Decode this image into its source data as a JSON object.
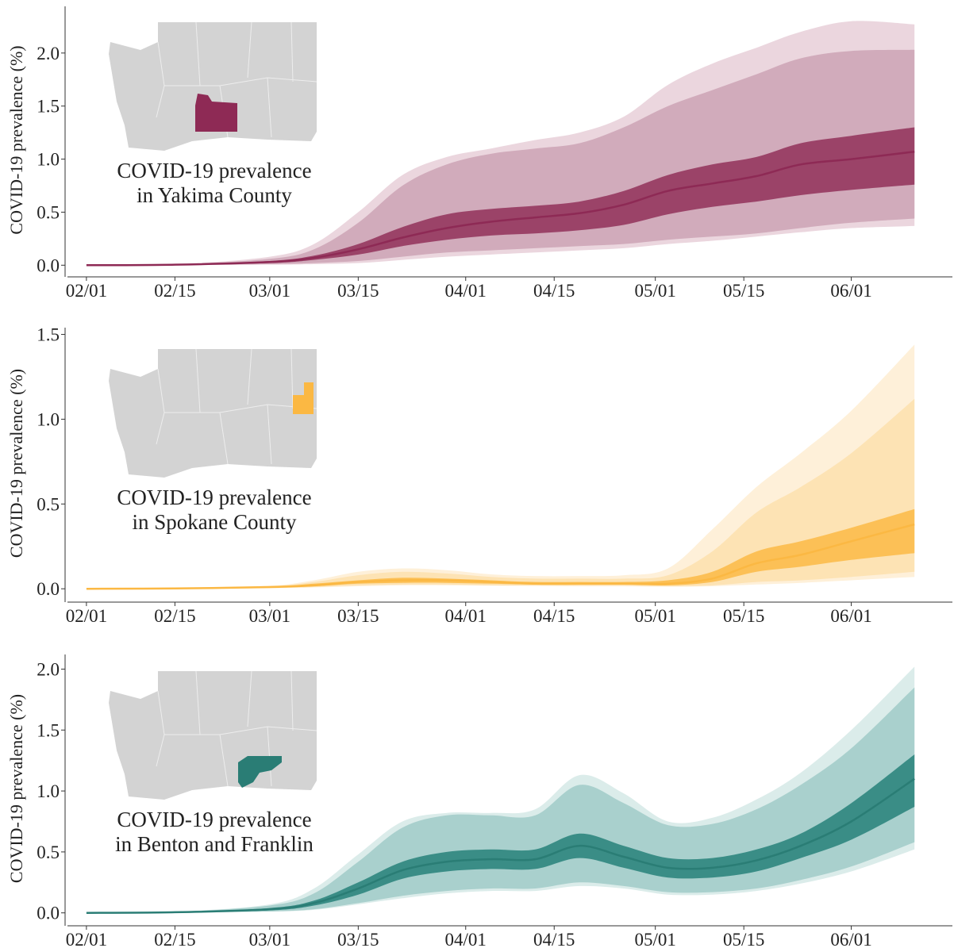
{
  "chart_data": [
    {
      "type": "line",
      "annotation": [
        "COVID-19 prevalence",
        "in Yakima County"
      ],
      "ylabel": "COVID-19 prevalence (%)",
      "x": [
        "02/01",
        "02/15",
        "03/01",
        "03/08",
        "03/15",
        "03/22",
        "03/29",
        "04/05",
        "04/12",
        "04/19",
        "04/26",
        "05/03",
        "05/10",
        "05/17",
        "05/24",
        "06/01",
        "06/11"
      ],
      "xlim": [
        "01/29",
        "06/17"
      ],
      "xticks": [
        "02/01",
        "02/15",
        "03/01",
        "03/15",
        "04/01",
        "04/15",
        "05/01",
        "05/15",
        "06/01"
      ],
      "ylim": [
        -0.08,
        2.44
      ],
      "yticks": [
        {
          "value": 0,
          "label": "0.0"
        },
        0.5,
        {
          "value": 1,
          "label": "1.0"
        },
        1.5,
        {
          "value": 2,
          "label": "2.0"
        }
      ],
      "median": {
        "color": "#8e2a55",
        "values": [
          0,
          0.005,
          0.03,
          0.07,
          0.15,
          0.26,
          0.35,
          0.41,
          0.45,
          0.49,
          0.57,
          0.7,
          0.77,
          0.84,
          0.95,
          1.0,
          1.07
        ]
      },
      "bands": [
        {
          "color": "#ebd6de",
          "upper": [
            0,
            0.008,
            0.08,
            0.2,
            0.5,
            0.85,
            1.02,
            1.1,
            1.18,
            1.25,
            1.4,
            1.7,
            1.9,
            2.05,
            2.2,
            2.3,
            2.27
          ],
          "lower": [
            0,
            0.002,
            0.005,
            0.01,
            0.02,
            0.05,
            0.08,
            0.1,
            0.12,
            0.14,
            0.16,
            0.2,
            0.23,
            0.27,
            0.31,
            0.35,
            0.37
          ]
        },
        {
          "color": "#d1abbb",
          "upper": [
            0,
            0.007,
            0.06,
            0.15,
            0.4,
            0.75,
            0.95,
            1.05,
            1.1,
            1.15,
            1.3,
            1.5,
            1.65,
            1.8,
            1.95,
            2.02,
            2.03
          ],
          "lower": [
            0,
            0.003,
            0.01,
            0.02,
            0.04,
            0.08,
            0.12,
            0.14,
            0.16,
            0.18,
            0.2,
            0.24,
            0.27,
            0.3,
            0.35,
            0.4,
            0.44
          ]
        },
        {
          "color": "#9b4368",
          "upper": [
            0,
            0.006,
            0.04,
            0.09,
            0.2,
            0.36,
            0.48,
            0.53,
            0.56,
            0.6,
            0.7,
            0.85,
            0.95,
            1.02,
            1.15,
            1.22,
            1.3
          ],
          "lower": [
            0,
            0.004,
            0.02,
            0.05,
            0.1,
            0.18,
            0.24,
            0.28,
            0.3,
            0.33,
            0.38,
            0.48,
            0.55,
            0.6,
            0.66,
            0.71,
            0.76
          ]
        }
      ]
    },
    {
      "type": "line",
      "annotation": [
        "COVID-19 prevalence",
        "in Spokane County"
      ],
      "ylabel": "COVID-19 prevalence (%)",
      "x": [
        "02/01",
        "02/15",
        "03/01",
        "03/08",
        "03/15",
        "03/22",
        "03/29",
        "04/05",
        "04/12",
        "04/19",
        "04/26",
        "05/03",
        "05/10",
        "05/17",
        "05/24",
        "06/01",
        "06/11"
      ],
      "xlim": [
        "01/29",
        "06/17"
      ],
      "xticks": [
        "02/01",
        "02/15",
        "03/01",
        "03/15",
        "04/01",
        "04/15",
        "05/01",
        "05/15",
        "06/01"
      ],
      "ylim": [
        -0.06,
        1.54
      ],
      "yticks": [
        {
          "value": 0,
          "label": "0.0"
        },
        0.5,
        {
          "value": 1,
          "label": "1.0"
        },
        1.5
      ],
      "median": {
        "color": "#fbb843",
        "values": [
          0,
          0.002,
          0.01,
          0.02,
          0.04,
          0.05,
          0.05,
          0.04,
          0.03,
          0.03,
          0.03,
          0.03,
          0.06,
          0.15,
          0.2,
          0.28,
          0.38
        ]
      },
      "bands": [
        {
          "color": "#fef0d9",
          "upper": [
            0,
            0.005,
            0.018,
            0.05,
            0.1,
            0.12,
            0.11,
            0.085,
            0.075,
            0.075,
            0.08,
            0.12,
            0.35,
            0.6,
            0.8,
            1.05,
            1.44
          ],
          "lower": [
            0,
            0,
            0.003,
            0.008,
            0.015,
            0.02,
            0.02,
            0.018,
            0.016,
            0.015,
            0.015,
            0.012,
            0.015,
            0.025,
            0.035,
            0.05,
            0.07
          ]
        },
        {
          "color": "#fde3b4",
          "upper": [
            0,
            0.004,
            0.015,
            0.04,
            0.08,
            0.1,
            0.09,
            0.07,
            0.06,
            0.06,
            0.06,
            0.08,
            0.22,
            0.45,
            0.6,
            0.8,
            1.12
          ],
          "lower": [
            0,
            0.001,
            0.005,
            0.01,
            0.02,
            0.025,
            0.025,
            0.02,
            0.02,
            0.018,
            0.018,
            0.015,
            0.02,
            0.04,
            0.05,
            0.07,
            0.1
          ]
        },
        {
          "color": "#fcc056",
          "upper": [
            0,
            0.003,
            0.012,
            0.03,
            0.05,
            0.065,
            0.06,
            0.05,
            0.04,
            0.04,
            0.04,
            0.05,
            0.1,
            0.22,
            0.28,
            0.36,
            0.47
          ],
          "lower": [
            0,
            0.001,
            0.008,
            0.015,
            0.03,
            0.035,
            0.035,
            0.03,
            0.025,
            0.025,
            0.025,
            0.02,
            0.04,
            0.1,
            0.13,
            0.17,
            0.21
          ]
        }
      ]
    },
    {
      "type": "line",
      "annotation": [
        "COVID-19 prevalence",
        "in Benton and Franklin"
      ],
      "ylabel": "COVID-19 prevalence (%)",
      "x": [
        "02/01",
        "02/15",
        "03/01",
        "03/08",
        "03/15",
        "03/22",
        "03/29",
        "04/05",
        "04/12",
        "04/19",
        "04/26",
        "05/03",
        "05/10",
        "05/17",
        "05/24",
        "06/01",
        "06/11"
      ],
      "xlim": [
        "01/29",
        "06/17"
      ],
      "xticks": [
        "02/01",
        "02/15",
        "03/01",
        "03/15",
        "04/01",
        "04/15",
        "05/01",
        "05/15",
        "06/01"
      ],
      "ylim": [
        -0.08,
        2.12
      ],
      "yticks": [
        {
          "value": 0,
          "label": "0.0"
        },
        0.5,
        {
          "value": 1,
          "label": "1.0"
        },
        1.5,
        {
          "value": 2,
          "label": "2.0"
        }
      ],
      "median": {
        "color": "#2a7d75",
        "values": [
          0,
          0.005,
          0.03,
          0.08,
          0.2,
          0.35,
          0.42,
          0.44,
          0.44,
          0.55,
          0.46,
          0.37,
          0.37,
          0.43,
          0.55,
          0.75,
          1.1
        ]
      },
      "bands": [
        {
          "color": "#dbecea",
          "upper": [
            0,
            0.009,
            0.07,
            0.2,
            0.48,
            0.75,
            0.82,
            0.82,
            0.85,
            1.13,
            0.98,
            0.75,
            0.78,
            0.93,
            1.15,
            1.5,
            2.02
          ],
          "lower": [
            0,
            0.002,
            0.01,
            0.025,
            0.07,
            0.12,
            0.16,
            0.18,
            0.18,
            0.22,
            0.2,
            0.15,
            0.15,
            0.18,
            0.24,
            0.34,
            0.52
          ]
        },
        {
          "color": "#a9d0cd",
          "upper": [
            0,
            0.008,
            0.06,
            0.16,
            0.42,
            0.7,
            0.8,
            0.8,
            0.8,
            1.05,
            0.9,
            0.72,
            0.73,
            0.85,
            1.05,
            1.35,
            1.85
          ],
          "lower": [
            0,
            0.003,
            0.012,
            0.03,
            0.08,
            0.14,
            0.18,
            0.2,
            0.2,
            0.25,
            0.22,
            0.17,
            0.17,
            0.2,
            0.27,
            0.38,
            0.58
          ]
        },
        {
          "color": "#3a8d86",
          "upper": [
            0,
            0.006,
            0.04,
            0.1,
            0.25,
            0.42,
            0.5,
            0.52,
            0.52,
            0.65,
            0.55,
            0.45,
            0.45,
            0.52,
            0.65,
            0.9,
            1.3
          ],
          "lower": [
            0,
            0.004,
            0.02,
            0.06,
            0.15,
            0.28,
            0.34,
            0.36,
            0.36,
            0.45,
            0.37,
            0.29,
            0.29,
            0.34,
            0.45,
            0.6,
            0.87
          ]
        }
      ]
    }
  ]
}
